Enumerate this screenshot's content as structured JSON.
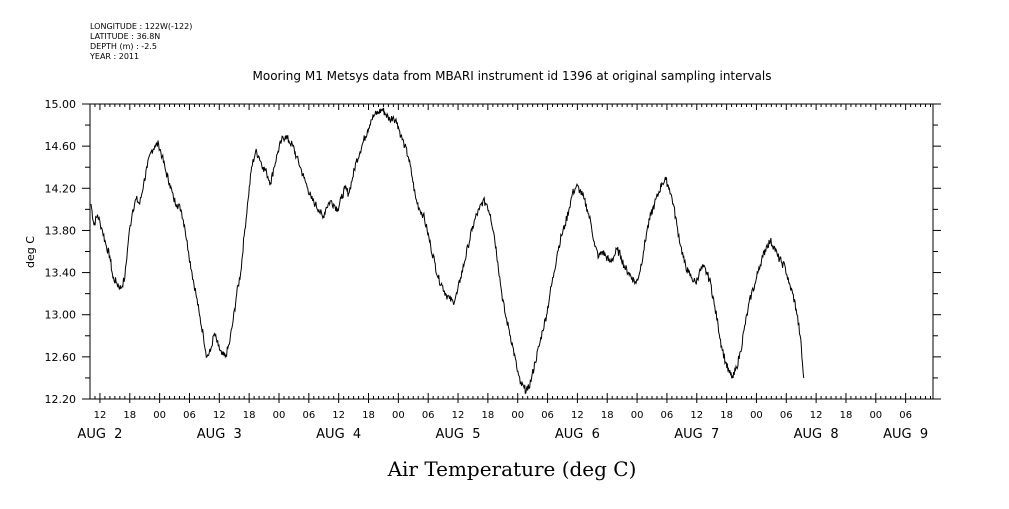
{
  "metadata": {
    "longitude": "LONGITUDE : 122W(-122)",
    "latitude": "LATITUDE : 36.8N",
    "depth": "DEPTH (m) : -2.5",
    "year": "YEAR : 2011"
  },
  "chart_data": {
    "type": "line",
    "title": "Mooring M1 Metsys data from MBARI instrument id 1396 at original sampling intervals",
    "ylabel": "deg C",
    "xlabel": "Air Temperature (deg C)",
    "ylim": [
      12.2,
      15.0
    ],
    "y_ticks": [
      "12.20",
      "12.60",
      "13.00",
      "13.40",
      "13.80",
      "14.20",
      "14.60",
      "15.00"
    ],
    "xlim_hours": [
      34.0,
      203.5
    ],
    "hour_ticks": [
      {
        "hour": 36,
        "label": "12"
      },
      {
        "hour": 42,
        "label": "18"
      },
      {
        "hour": 48,
        "label": "00"
      },
      {
        "hour": 54,
        "label": "06"
      },
      {
        "hour": 60,
        "label": "12"
      },
      {
        "hour": 66,
        "label": "18"
      },
      {
        "hour": 72,
        "label": "00"
      },
      {
        "hour": 78,
        "label": "06"
      },
      {
        "hour": 84,
        "label": "12"
      },
      {
        "hour": 90,
        "label": "18"
      },
      {
        "hour": 96,
        "label": "00"
      },
      {
        "hour": 102,
        "label": "06"
      },
      {
        "hour": 108,
        "label": "12"
      },
      {
        "hour": 114,
        "label": "18"
      },
      {
        "hour": 120,
        "label": "00"
      },
      {
        "hour": 126,
        "label": "06"
      },
      {
        "hour": 132,
        "label": "12"
      },
      {
        "hour": 138,
        "label": "18"
      },
      {
        "hour": 144,
        "label": "00"
      },
      {
        "hour": 150,
        "label": "06"
      },
      {
        "hour": 156,
        "label": "12"
      },
      {
        "hour": 162,
        "label": "18"
      },
      {
        "hour": 168,
        "label": "00"
      },
      {
        "hour": 174,
        "label": "06"
      },
      {
        "hour": 180,
        "label": "12"
      },
      {
        "hour": 186,
        "label": "18"
      },
      {
        "hour": 192,
        "label": "00"
      },
      {
        "hour": 198,
        "label": "06"
      }
    ],
    "date_labels": [
      {
        "hour": 36,
        "text": "AUG  2"
      },
      {
        "hour": 60,
        "text": "AUG  3"
      },
      {
        "hour": 84,
        "text": "AUG  4"
      },
      {
        "hour": 108,
        "text": "AUG  5"
      },
      {
        "hour": 132,
        "text": "AUG  6"
      },
      {
        "hour": 156,
        "text": "AUG  7"
      },
      {
        "hour": 180,
        "text": "AUG  8"
      },
      {
        "hour": 198,
        "text": "AUG  9"
      }
    ],
    "grid": false,
    "series": [
      {
        "values": [
          {
            "x": 34.2,
            "y": 14.05
          },
          {
            "x": 34.8,
            "y": 13.85
          },
          {
            "x": 35.5,
            "y": 13.95
          },
          {
            "x": 36.5,
            "y": 13.8
          },
          {
            "x": 37.3,
            "y": 13.65
          },
          {
            "x": 38.0,
            "y": 13.55
          },
          {
            "x": 38.6,
            "y": 13.35
          },
          {
            "x": 39.4,
            "y": 13.3
          },
          {
            "x": 40.2,
            "y": 13.25
          },
          {
            "x": 41.0,
            "y": 13.35
          },
          {
            "x": 41.8,
            "y": 13.75
          },
          {
            "x": 42.6,
            "y": 14.0
          },
          {
            "x": 43.3,
            "y": 14.1
          },
          {
            "x": 44.0,
            "y": 14.05
          },
          {
            "x": 44.8,
            "y": 14.25
          },
          {
            "x": 45.5,
            "y": 14.4
          },
          {
            "x": 46.3,
            "y": 14.55
          },
          {
            "x": 47.0,
            "y": 14.6
          },
          {
            "x": 47.8,
            "y": 14.62
          },
          {
            "x": 48.5,
            "y": 14.5
          },
          {
            "x": 49.3,
            "y": 14.35
          },
          {
            "x": 50.0,
            "y": 14.25
          },
          {
            "x": 50.8,
            "y": 14.1
          },
          {
            "x": 51.5,
            "y": 14.05
          },
          {
            "x": 52.3,
            "y": 14.0
          },
          {
            "x": 53.0,
            "y": 13.85
          },
          {
            "x": 53.8,
            "y": 13.6
          },
          {
            "x": 54.5,
            "y": 13.4
          },
          {
            "x": 55.3,
            "y": 13.2
          },
          {
            "x": 56.0,
            "y": 13.0
          },
          {
            "x": 56.8,
            "y": 12.8
          },
          {
            "x": 57.5,
            "y": 12.6
          },
          {
            "x": 58.2,
            "y": 12.65
          },
          {
            "x": 59.0,
            "y": 12.82
          },
          {
            "x": 59.8,
            "y": 12.7
          },
          {
            "x": 60.5,
            "y": 12.62
          },
          {
            "x": 61.2,
            "y": 12.6
          },
          {
            "x": 62.0,
            "y": 12.72
          },
          {
            "x": 62.8,
            "y": 12.95
          },
          {
            "x": 63.5,
            "y": 13.2
          },
          {
            "x": 64.3,
            "y": 13.4
          },
          {
            "x": 65.0,
            "y": 13.75
          },
          {
            "x": 65.8,
            "y": 14.1
          },
          {
            "x": 66.5,
            "y": 14.4
          },
          {
            "x": 67.3,
            "y": 14.55
          },
          {
            "x": 68.0,
            "y": 14.5
          },
          {
            "x": 68.8,
            "y": 14.4
          },
          {
            "x": 69.5,
            "y": 14.35
          },
          {
            "x": 70.3,
            "y": 14.25
          },
          {
            "x": 71.0,
            "y": 14.4
          },
          {
            "x": 71.8,
            "y": 14.55
          },
          {
            "x": 72.5,
            "y": 14.65
          },
          {
            "x": 73.3,
            "y": 14.7
          },
          {
            "x": 74.0,
            "y": 14.65
          },
          {
            "x": 74.8,
            "y": 14.6
          },
          {
            "x": 75.5,
            "y": 14.5
          },
          {
            "x": 76.3,
            "y": 14.4
          },
          {
            "x": 77.0,
            "y": 14.3
          },
          {
            "x": 77.8,
            "y": 14.2
          },
          {
            "x": 78.5,
            "y": 14.1
          },
          {
            "x": 79.3,
            "y": 14.05
          },
          {
            "x": 80.0,
            "y": 14.0
          },
          {
            "x": 80.8,
            "y": 13.92
          },
          {
            "x": 81.5,
            "y": 14.02
          },
          {
            "x": 82.3,
            "y": 14.08
          },
          {
            "x": 83.0,
            "y": 14.05
          },
          {
            "x": 83.8,
            "y": 14.0
          },
          {
            "x": 84.5,
            "y": 14.1
          },
          {
            "x": 85.3,
            "y": 14.2
          },
          {
            "x": 86.0,
            "y": 14.15
          },
          {
            "x": 86.8,
            "y": 14.3
          },
          {
            "x": 87.5,
            "y": 14.45
          },
          {
            "x": 88.3,
            "y": 14.55
          },
          {
            "x": 89.0,
            "y": 14.65
          },
          {
            "x": 89.8,
            "y": 14.75
          },
          {
            "x": 90.5,
            "y": 14.85
          },
          {
            "x": 91.3,
            "y": 14.9
          },
          {
            "x": 92.0,
            "y": 14.92
          },
          {
            "x": 92.8,
            "y": 14.95
          },
          {
            "x": 93.5,
            "y": 14.9
          },
          {
            "x": 94.3,
            "y": 14.85
          },
          {
            "x": 95.0,
            "y": 14.88
          },
          {
            "x": 95.8,
            "y": 14.82
          },
          {
            "x": 96.5,
            "y": 14.7
          },
          {
            "x": 97.3,
            "y": 14.6
          },
          {
            "x": 98.0,
            "y": 14.5
          },
          {
            "x": 98.8,
            "y": 14.3
          },
          {
            "x": 99.5,
            "y": 14.1
          },
          {
            "x": 100.3,
            "y": 14.0
          },
          {
            "x": 101.0,
            "y": 13.95
          },
          {
            "x": 101.8,
            "y": 13.8
          },
          {
            "x": 102.5,
            "y": 13.65
          },
          {
            "x": 103.3,
            "y": 13.5
          },
          {
            "x": 104.0,
            "y": 13.35
          },
          {
            "x": 104.8,
            "y": 13.28
          },
          {
            "x": 105.5,
            "y": 13.2
          },
          {
            "x": 106.3,
            "y": 13.15
          },
          {
            "x": 107.0,
            "y": 13.12
          },
          {
            "x": 107.8,
            "y": 13.2
          },
          {
            "x": 108.5,
            "y": 13.35
          },
          {
            "x": 109.3,
            "y": 13.5
          },
          {
            "x": 110.0,
            "y": 13.65
          },
          {
            "x": 110.8,
            "y": 13.8
          },
          {
            "x": 111.5,
            "y": 13.92
          },
          {
            "x": 112.3,
            "y": 14.0
          },
          {
            "x": 113.0,
            "y": 14.08
          },
          {
            "x": 113.8,
            "y": 14.05
          },
          {
            "x": 114.5,
            "y": 13.95
          },
          {
            "x": 115.3,
            "y": 13.75
          },
          {
            "x": 116.0,
            "y": 13.5
          },
          {
            "x": 116.8,
            "y": 13.2
          },
          {
            "x": 117.5,
            "y": 13.0
          },
          {
            "x": 118.3,
            "y": 12.85
          },
          {
            "x": 119.0,
            "y": 12.7
          },
          {
            "x": 119.8,
            "y": 12.5
          },
          {
            "x": 120.5,
            "y": 12.35
          },
          {
            "x": 121.3,
            "y": 12.3
          },
          {
            "x": 122.0,
            "y": 12.28
          },
          {
            "x": 122.8,
            "y": 12.4
          },
          {
            "x": 123.5,
            "y": 12.55
          },
          {
            "x": 124.3,
            "y": 12.7
          },
          {
            "x": 125.0,
            "y": 12.85
          },
          {
            "x": 125.8,
            "y": 13.0
          },
          {
            "x": 126.5,
            "y": 13.2
          },
          {
            "x": 127.3,
            "y": 13.4
          },
          {
            "x": 128.0,
            "y": 13.6
          },
          {
            "x": 128.8,
            "y": 13.75
          },
          {
            "x": 129.5,
            "y": 13.85
          },
          {
            "x": 130.3,
            "y": 14.0
          },
          {
            "x": 131.0,
            "y": 14.15
          },
          {
            "x": 131.8,
            "y": 14.22
          },
          {
            "x": 132.5,
            "y": 14.18
          },
          {
            "x": 133.3,
            "y": 14.1
          },
          {
            "x": 134.0,
            "y": 14.0
          },
          {
            "x": 134.8,
            "y": 13.85
          },
          {
            "x": 135.5,
            "y": 13.65
          },
          {
            "x": 136.3,
            "y": 13.55
          },
          {
            "x": 137.0,
            "y": 13.6
          },
          {
            "x": 137.8,
            "y": 13.55
          },
          {
            "x": 138.5,
            "y": 13.5
          },
          {
            "x": 139.3,
            "y": 13.55
          },
          {
            "x": 140.0,
            "y": 13.62
          },
          {
            "x": 140.8,
            "y": 13.55
          },
          {
            "x": 141.5,
            "y": 13.45
          },
          {
            "x": 142.3,
            "y": 13.4
          },
          {
            "x": 143.0,
            "y": 13.35
          },
          {
            "x": 143.8,
            "y": 13.3
          },
          {
            "x": 144.5,
            "y": 13.4
          },
          {
            "x": 145.3,
            "y": 13.6
          },
          {
            "x": 146.0,
            "y": 13.8
          },
          {
            "x": 146.8,
            "y": 13.95
          },
          {
            "x": 147.5,
            "y": 14.05
          },
          {
            "x": 148.3,
            "y": 14.15
          },
          {
            "x": 149.0,
            "y": 14.25
          },
          {
            "x": 149.8,
            "y": 14.28
          },
          {
            "x": 150.5,
            "y": 14.2
          },
          {
            "x": 151.3,
            "y": 14.05
          },
          {
            "x": 152.0,
            "y": 13.85
          },
          {
            "x": 152.8,
            "y": 13.65
          },
          {
            "x": 153.5,
            "y": 13.5
          },
          {
            "x": 154.3,
            "y": 13.4
          },
          {
            "x": 155.0,
            "y": 13.35
          },
          {
            "x": 155.8,
            "y": 13.3
          },
          {
            "x": 156.5,
            "y": 13.4
          },
          {
            "x": 157.3,
            "y": 13.45
          },
          {
            "x": 158.0,
            "y": 13.4
          },
          {
            "x": 158.8,
            "y": 13.3
          },
          {
            "x": 159.5,
            "y": 13.1
          },
          {
            "x": 160.3,
            "y": 12.9
          },
          {
            "x": 161.0,
            "y": 12.7
          },
          {
            "x": 161.8,
            "y": 12.55
          },
          {
            "x": 162.5,
            "y": 12.45
          },
          {
            "x": 163.3,
            "y": 12.4
          },
          {
            "x": 164.0,
            "y": 12.5
          },
          {
            "x": 164.8,
            "y": 12.65
          },
          {
            "x": 165.5,
            "y": 12.85
          },
          {
            "x": 166.3,
            "y": 13.05
          },
          {
            "x": 167.0,
            "y": 13.2
          },
          {
            "x": 167.8,
            "y": 13.3
          },
          {
            "x": 168.5,
            "y": 13.45
          },
          {
            "x": 169.3,
            "y": 13.55
          },
          {
            "x": 170.0,
            "y": 13.65
          },
          {
            "x": 170.8,
            "y": 13.7
          },
          {
            "x": 171.5,
            "y": 13.65
          },
          {
            "x": 172.3,
            "y": 13.55
          },
          {
            "x": 173.0,
            "y": 13.5
          },
          {
            "x": 173.8,
            "y": 13.45
          },
          {
            "x": 174.5,
            "y": 13.3
          },
          {
            "x": 175.3,
            "y": 13.2
          },
          {
            "x": 176.0,
            "y": 13.05
          },
          {
            "x": 176.8,
            "y": 12.8
          },
          {
            "x": 177.5,
            "y": 12.4
          }
        ]
      }
    ]
  }
}
